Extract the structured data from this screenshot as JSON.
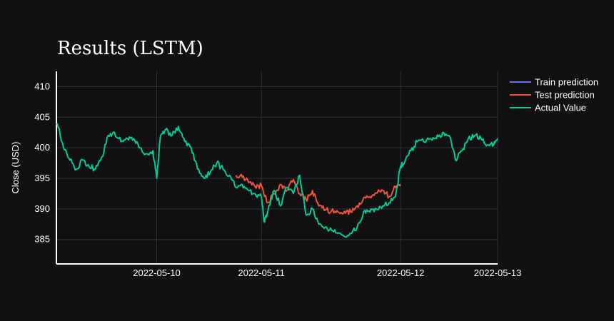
{
  "chart_data": {
    "type": "line",
    "title": "Results (LSTM)",
    "xlabel": "",
    "ylabel": "Close (USD)",
    "xlim": [
      -0.45,
      3.0
    ],
    "ylim": [
      381,
      412.5
    ],
    "x_ticks": [
      {
        "pos": 0.33,
        "label": "2022-05-10"
      },
      {
        "pos": 1.15,
        "label": "2022-05-11"
      },
      {
        "pos": 2.24,
        "label": "2022-05-12"
      },
      {
        "pos": 3.0,
        "label": "2022-05-13"
      }
    ],
    "y_ticks": [
      385,
      390,
      395,
      400,
      405,
      410
    ],
    "x_unit": "days from 2022-05-10 (axis positions as displayed)",
    "legend_position": "top-right outside",
    "series": [
      {
        "name": "Train prediction",
        "color": "#636efa",
        "x": [],
        "y": []
      },
      {
        "name": "Test prediction",
        "color": "#ef553b",
        "x": [
          0.95,
          1.0,
          1.05,
          1.1,
          1.15,
          1.2,
          1.25,
          1.3,
          1.35,
          1.4,
          1.45,
          1.5,
          1.55,
          1.6,
          1.65,
          1.7,
          1.75,
          1.8,
          1.85,
          1.9,
          1.95,
          2.0,
          2.05,
          2.1,
          2.15,
          2.2,
          2.24
        ],
        "y": [
          395.5,
          395.2,
          394.3,
          393.7,
          393.8,
          391.0,
          392.5,
          394.0,
          393.0,
          394.8,
          392.5,
          391.5,
          393.0,
          390.5,
          389.8,
          389.7,
          389.5,
          389.6,
          389.5,
          390.5,
          391.8,
          392.0,
          392.6,
          393.0,
          392.0,
          393.5,
          394.0
        ]
      },
      {
        "name": "Actual Value",
        "color": "#00cc96",
        "x": [
          -0.45,
          -0.4,
          -0.35,
          -0.3,
          -0.25,
          -0.2,
          -0.15,
          -0.1,
          -0.05,
          0.0,
          0.05,
          0.1,
          0.15,
          0.2,
          0.25,
          0.3,
          0.33,
          0.36,
          0.4,
          0.45,
          0.5,
          0.55,
          0.6,
          0.65,
          0.7,
          0.75,
          0.8,
          0.85,
          0.9,
          0.95,
          1.0,
          1.05,
          1.1,
          1.15,
          1.17,
          1.2,
          1.25,
          1.3,
          1.35,
          1.4,
          1.45,
          1.5,
          1.55,
          1.6,
          1.65,
          1.7,
          1.75,
          1.8,
          1.85,
          1.9,
          1.95,
          2.0,
          2.05,
          2.1,
          2.15,
          2.2,
          2.24,
          2.27,
          2.32,
          2.37,
          2.42,
          2.47,
          2.52,
          2.57,
          2.62,
          2.67,
          2.72,
          2.77,
          2.82,
          2.87,
          2.92,
          2.97,
          3.0
        ],
        "y": [
          404.0,
          400.0,
          398.0,
          396.5,
          398.0,
          397.0,
          396.5,
          398.5,
          402.0,
          402.5,
          401.0,
          401.5,
          401.5,
          400.0,
          399.0,
          399.5,
          395.0,
          402.0,
          403.0,
          402.0,
          403.5,
          401.0,
          400.0,
          396.5,
          395.0,
          396.0,
          397.5,
          396.5,
          395.5,
          393.5,
          394.0,
          393.0,
          392.5,
          392.0,
          388.0,
          389.5,
          393.0,
          390.5,
          393.5,
          392.5,
          395.5,
          389.0,
          390.0,
          387.5,
          387.0,
          386.5,
          386.0,
          385.5,
          386.0,
          387.0,
          389.5,
          389.5,
          390.0,
          390.5,
          391.0,
          392.0,
          397.0,
          397.5,
          399.5,
          401.0,
          401.0,
          401.5,
          401.5,
          402.5,
          402.0,
          398.0,
          399.5,
          401.5,
          402.0,
          401.5,
          400.5,
          400.5,
          401.5
        ]
      }
    ]
  }
}
